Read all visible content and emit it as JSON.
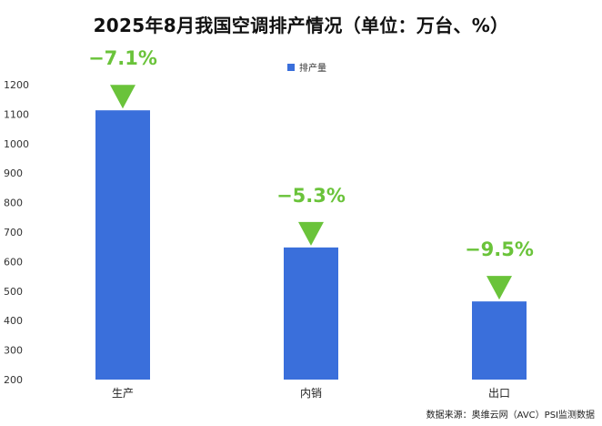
{
  "chart_data": {
    "type": "bar",
    "title": "2025年8月我国空调排产情况（单位：万台、%）",
    "categories": [
      "生产",
      "内销",
      "出口"
    ],
    "series": [
      {
        "name": "排产量",
        "values": [
          1113,
          648,
          465
        ],
        "color": "#3a6fdb"
      }
    ],
    "annotations": [
      "−7.1%",
      "−5.3%",
      "−9.5%"
    ],
    "annotation_color": "#6ac33a",
    "annotation_marker": "down-triangle-icon",
    "ylim": [
      200,
      1200
    ],
    "yticks": [
      200,
      300,
      400,
      500,
      600,
      700,
      800,
      900,
      1000,
      1100,
      1200
    ],
    "legend_position": "top-center",
    "grid": false
  },
  "source": "数据来源：奥维云网（AVC）PSI监测数据"
}
